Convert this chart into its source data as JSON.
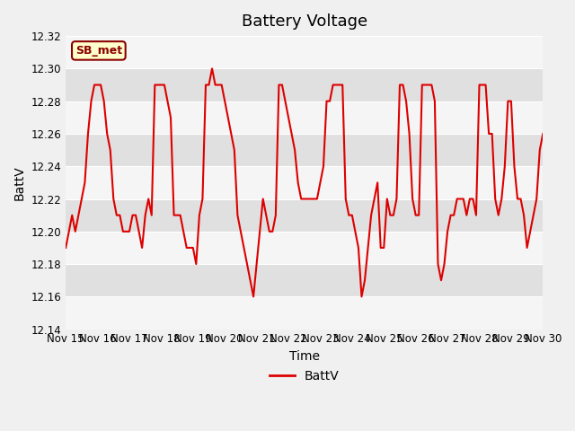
{
  "title": "Battery Voltage",
  "xlabel": "Time",
  "ylabel": "BattV",
  "legend_label": "BattV",
  "annotation": "SB_met",
  "ylim": [
    12.14,
    12.32
  ],
  "yticks": [
    12.14,
    12.16,
    12.18,
    12.2,
    12.22,
    12.24,
    12.26,
    12.28,
    12.3,
    12.32
  ],
  "xtick_labels": [
    "Nov 15",
    "Nov 16",
    "Nov 17",
    "Nov 18",
    "Nov 19",
    "Nov 20",
    "Nov 21",
    "Nov 22",
    "Nov 23",
    "Nov 24",
    "Nov 25",
    "Nov 26",
    "Nov 27",
    "Nov 28",
    "Nov 29",
    "Nov 30"
  ],
  "line_color": "#dd0000",
  "line_width": 1.5,
  "bg_color": "#e8e8e8",
  "plot_bg_color": "#e8e8e8",
  "band_color": "#d0d0d0",
  "annotation_bg": "#ffffcc",
  "annotation_border": "#8b0000",
  "title_fontsize": 13,
  "axis_fontsize": 10,
  "tick_fontsize": 8.5,
  "legend_fontsize": 10,
  "data_x": [
    0,
    0.1,
    0.2,
    0.3,
    0.4,
    0.5,
    0.6,
    0.7,
    0.8,
    0.9,
    1.0,
    1.1,
    1.2,
    1.3,
    1.4,
    1.5,
    1.6,
    1.7,
    1.8,
    1.9,
    2.0,
    2.1,
    2.2,
    2.3,
    2.4,
    2.5,
    2.6,
    2.7,
    2.8,
    2.9,
    3.0,
    3.1,
    3.2,
    3.3,
    3.4,
    3.5,
    3.6,
    3.7,
    3.8,
    3.9,
    4.0,
    4.1,
    4.2,
    4.3,
    4.4,
    4.5,
    4.6,
    4.7,
    4.8,
    4.9,
    5.0,
    5.1,
    5.2,
    5.3,
    5.4,
    5.5,
    5.6,
    5.7,
    5.8,
    5.9,
    6.0,
    6.1,
    6.2,
    6.3,
    6.4,
    6.5,
    6.6,
    6.7,
    6.8,
    6.9,
    7.0,
    7.1,
    7.2,
    7.3,
    7.4,
    7.5,
    7.6,
    7.7,
    7.8,
    7.9,
    8.0,
    8.1,
    8.2,
    8.3,
    8.4,
    8.5,
    8.6,
    8.7,
    8.8,
    8.9,
    9.0,
    9.1,
    9.2,
    9.3,
    9.4,
    9.5,
    9.6,
    9.7,
    9.8,
    9.9,
    10.0,
    10.1,
    10.2,
    10.3,
    10.4,
    10.5,
    10.6,
    10.7,
    10.8,
    10.9,
    11.0,
    11.1,
    11.2,
    11.3,
    11.4,
    11.5,
    11.6,
    11.7,
    11.8,
    11.9,
    12.0,
    12.1,
    12.2,
    12.3,
    12.4,
    12.5,
    12.6,
    12.7,
    12.8,
    12.9,
    13.0,
    13.1,
    13.2,
    13.3,
    13.4,
    13.5,
    13.6,
    13.7,
    13.8,
    13.9,
    14.0,
    14.1,
    14.2,
    14.3,
    14.4,
    14.5,
    14.6,
    14.7,
    14.8,
    14.9,
    15.0
  ],
  "data_y": [
    12.19,
    12.2,
    12.21,
    12.2,
    12.21,
    12.22,
    12.23,
    12.26,
    12.28,
    12.29,
    12.29,
    12.29,
    12.28,
    12.26,
    12.25,
    12.22,
    12.21,
    12.21,
    12.2,
    12.2,
    12.2,
    12.21,
    12.21,
    12.2,
    12.19,
    12.21,
    12.22,
    12.21,
    12.29,
    12.29,
    12.29,
    12.29,
    12.28,
    12.27,
    12.21,
    12.21,
    12.21,
    12.2,
    12.19,
    12.19,
    12.19,
    12.18,
    12.21,
    12.22,
    12.29,
    12.29,
    12.3,
    12.29,
    12.29,
    12.29,
    12.28,
    12.27,
    12.26,
    12.25,
    12.21,
    12.2,
    12.19,
    12.18,
    12.17,
    12.16,
    12.18,
    12.2,
    12.22,
    12.21,
    12.2,
    12.2,
    12.21,
    12.29,
    12.29,
    12.28,
    12.27,
    12.26,
    12.25,
    12.23,
    12.22,
    12.22,
    12.22,
    12.22,
    12.22,
    12.22,
    12.23,
    12.24,
    12.28,
    12.28,
    12.29,
    12.29,
    12.29,
    12.29,
    12.22,
    12.21,
    12.21,
    12.2,
    12.19,
    12.16,
    12.17,
    12.19,
    12.21,
    12.22,
    12.23,
    12.19,
    12.19,
    12.22,
    12.21,
    12.21,
    12.22,
    12.29,
    12.29,
    12.28,
    12.26,
    12.22,
    12.21,
    12.21,
    12.29,
    12.29,
    12.29,
    12.29,
    12.28,
    12.18,
    12.17,
    12.18,
    12.2,
    12.21,
    12.21,
    12.22,
    12.22,
    12.22,
    12.21,
    12.22,
    12.22,
    12.21,
    12.29,
    12.29,
    12.29,
    12.26,
    12.26,
    12.22,
    12.21,
    12.22,
    12.24,
    12.28,
    12.28,
    12.24,
    12.22,
    12.22,
    12.21,
    12.19,
    12.2,
    12.21,
    12.22,
    12.25,
    12.26
  ]
}
